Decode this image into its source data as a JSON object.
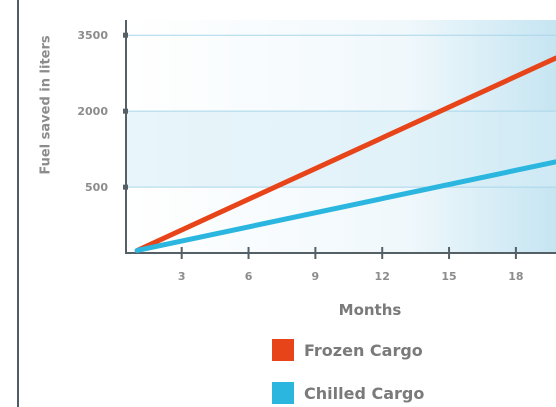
{
  "chart_data": {
    "type": "line",
    "title": "",
    "xlabel": "Months",
    "ylabel": "Fuel saved in liters",
    "xticks": [
      3,
      6,
      9,
      12,
      15,
      18
    ],
    "xtick_labels": [
      "3",
      "6",
      "9",
      "12",
      "15",
      "18"
    ],
    "yticks": [
      500,
      2000,
      3500
    ],
    "ytick_labels": [
      "500",
      "2000",
      "3500"
    ],
    "xlim": [
      0.5,
      19.8
    ],
    "ylim": [
      -800,
      3800
    ],
    "grid": true,
    "legend_position": "bottom",
    "series": [
      {
        "name": "Frozen Cargo",
        "color": "#e8441a",
        "x": [
          1,
          19.8
        ],
        "y": [
          -750,
          3050
        ]
      },
      {
        "name": "Chilled Cargo",
        "color": "#2ab6de",
        "x": [
          1,
          19.8
        ],
        "y": [
          -750,
          1000
        ]
      }
    ]
  }
}
